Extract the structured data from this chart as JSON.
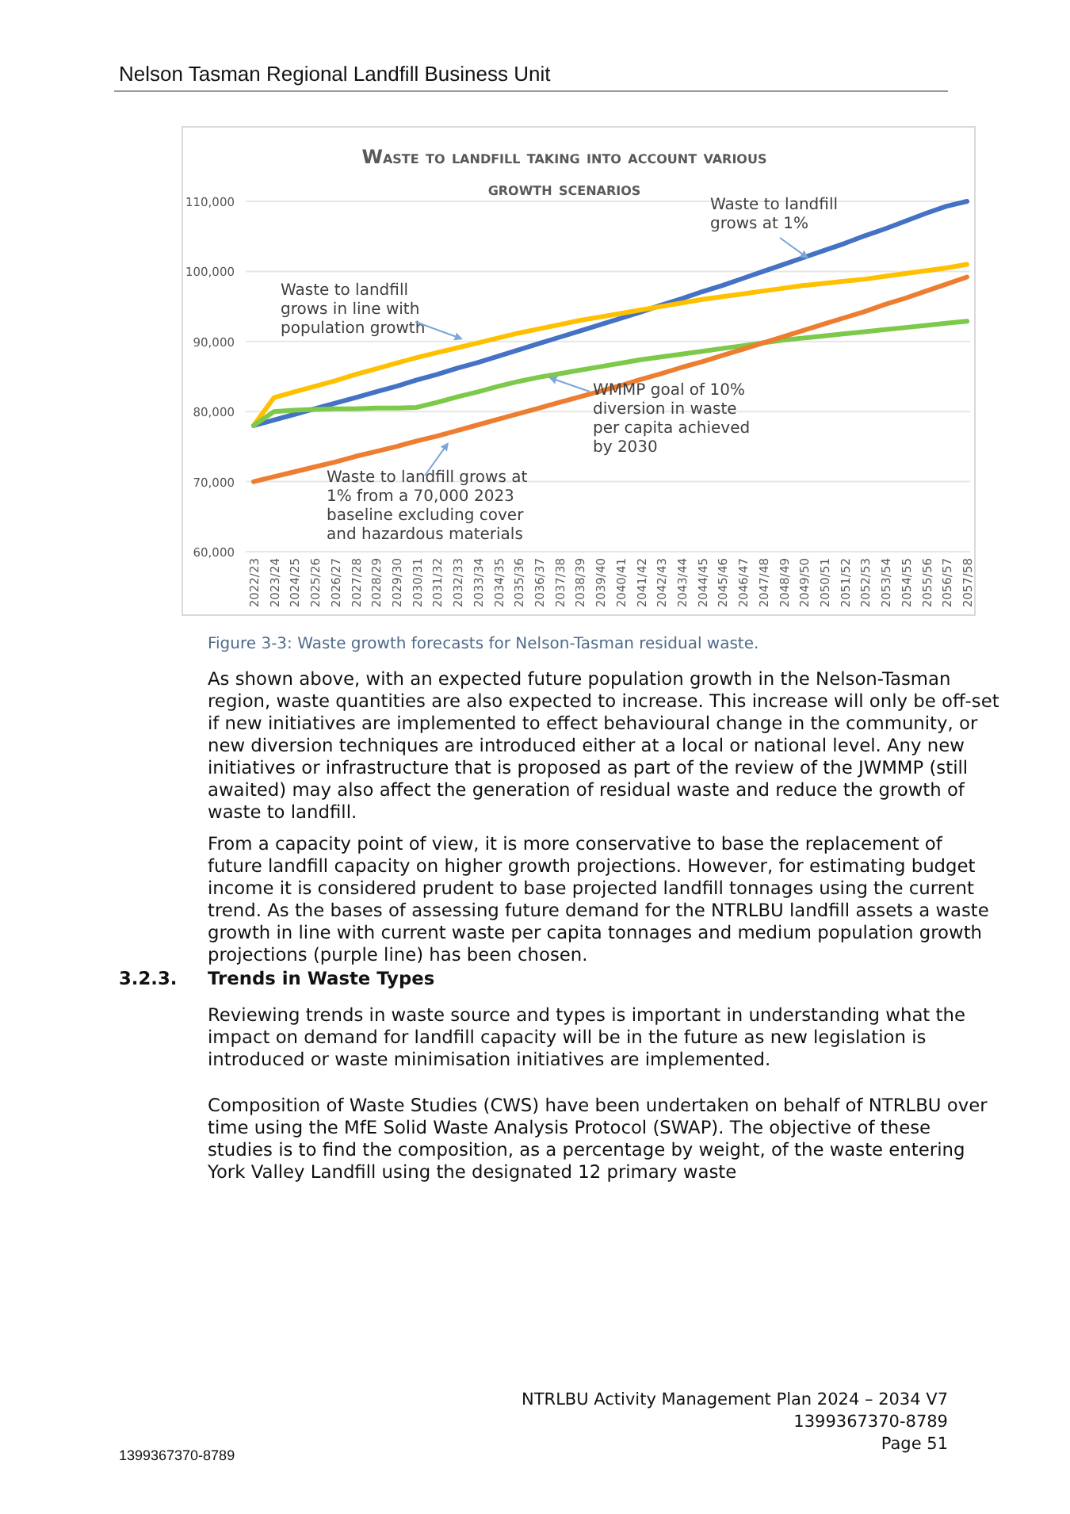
{
  "chart_data": {
    "type": "line",
    "title": "Waste to landfill taking into account various growth scenarios",
    "categories": [
      "2022/23",
      "2023/24",
      "2024/25",
      "2025/26",
      "2026/27",
      "2027/28",
      "2028/29",
      "2029/30",
      "2030/31",
      "2031/32",
      "2032/33",
      "2033/34",
      "2034/35",
      "2035/36",
      "2036/37",
      "2037/38",
      "2038/39",
      "2039/40",
      "2040/41",
      "2041/42",
      "2042/43",
      "2043/44",
      "2044/45",
      "2045/46",
      "2046/47",
      "2047/48",
      "2048/49",
      "2049/50",
      "2050/51",
      "2051/52",
      "2052/53",
      "2053/54",
      "2054/55",
      "2055/56",
      "2056/57",
      "2057/58"
    ],
    "series": [
      {
        "name": "Waste to landfill grows at 1%",
        "color": "#4472c4",
        "values": [
          78000,
          78800,
          79600,
          80400,
          81200,
          82000,
          82800,
          83600,
          84500,
          85300,
          86200,
          87000,
          87900,
          88800,
          89700,
          90600,
          91500,
          92400,
          93300,
          94200,
          95200,
          96100,
          97100,
          98000,
          99000,
          100000,
          101000,
          102000,
          103000,
          104000,
          105100,
          106100,
          107200,
          108300,
          109300,
          110000
        ]
      },
      {
        "name": "Waste to landfill grows in line with population growth",
        "color": "#ffc000",
        "values": [
          78000,
          82000,
          82800,
          83600,
          84400,
          85300,
          86100,
          86900,
          87700,
          88400,
          89100,
          89800,
          90500,
          91200,
          91800,
          92400,
          93000,
          93500,
          94000,
          94500,
          95000,
          95500,
          96000,
          96400,
          96800,
          97200,
          97600,
          98000,
          98300,
          98600,
          98900,
          99300,
          99700,
          100100,
          100500,
          101000
        ]
      },
      {
        "name": "WMMP goal of 10% diversion in waste per capita achieved by 2030",
        "color": "#7dc94a",
        "values": [
          78000,
          80000,
          80200,
          80300,
          80400,
          80400,
          80500,
          80500,
          80600,
          81300,
          82100,
          82800,
          83600,
          84300,
          84900,
          85400,
          85900,
          86400,
          86900,
          87400,
          87800,
          88200,
          88600,
          89000,
          89400,
          89800,
          90200,
          90500,
          90800,
          91100,
          91400,
          91700,
          92000,
          92300,
          92600,
          92900
        ]
      },
      {
        "name": "Waste to landfill grows at 1% from a 70,000 2023 baseline excluding cover and hazardous materials",
        "color": "#ed7d31",
        "values": [
          70000,
          70700,
          71400,
          72100,
          72800,
          73600,
          74300,
          75000,
          75800,
          76500,
          77300,
          78100,
          78900,
          79700,
          80500,
          81300,
          82100,
          82900,
          83700,
          84600,
          85400,
          86300,
          87100,
          88000,
          88900,
          89800,
          90700,
          91600,
          92500,
          93400,
          94300,
          95300,
          96200,
          97200,
          98200,
          99200
        ]
      }
    ],
    "ylim": [
      60000,
      110000
    ],
    "yticks": [
      {
        "value": 60000,
        "label": "60,000"
      },
      {
        "value": 70000,
        "label": "70,000"
      },
      {
        "value": 80000,
        "label": "80,000"
      },
      {
        "value": 90000,
        "label": "90,000"
      },
      {
        "value": 100000,
        "label": "100,000"
      },
      {
        "value": 110000,
        "label": "110,000"
      }
    ],
    "grid": "y",
    "marker": "none",
    "line_style": "solid",
    "annotations": [
      "Nelson Tasman Regional Landfill Business Unit",
      "Figure 3-3:  Waste growth forecasts for Nelson-Tasman residual waste.",
      "As shown above, with an expected future population growth in the Nelson-Tasman region, waste quantities are also expected to increase. This increase will only be off-set if new initiatives are implemented to effect behavioural change in the community, or new diversion techniques are introduced either at a local or national level. Any new initiatives or infrastructure that is proposed as part of the review of the JWMMP (still awaited) may also affect the generation of residual waste and reduce the growth of waste to landfill.",
      "From a capacity point of view, it is more conservative to base the replacement of future landfill capacity on higher growth projections. However, for estimating budget income it is considered prudent to base projected landfill tonnages using the current trend. As the bases of assessing future demand for the NTRLBU landfill assets a waste growth in line with current waste per capita tonnages and medium population growth projections (purple line) has been chosen.",
      "3.2.3.",
      "Trends in Waste Types",
      "Reviewing trends in waste source and types is important in understanding what the impact on demand for landfill capacity will be in the future as new legislation is introduced or waste minimisation initiatives are implemented.",
      "Composition of Waste Studies (CWS) have been undertaken on behalf of NTRLBU over time using the MfE Solid Waste Analysis Protocol (SWAP). The objective of these studies is to find the composition, as a percentage by weight, of the waste entering York Valley Landfill using the designated 12 primary waste",
      "NTRLBU Activity Management Plan 2024 – 2034 V7",
      "1399367370-8789",
      "Page 51",
      "1399367370-8789"
    ]
  }
}
